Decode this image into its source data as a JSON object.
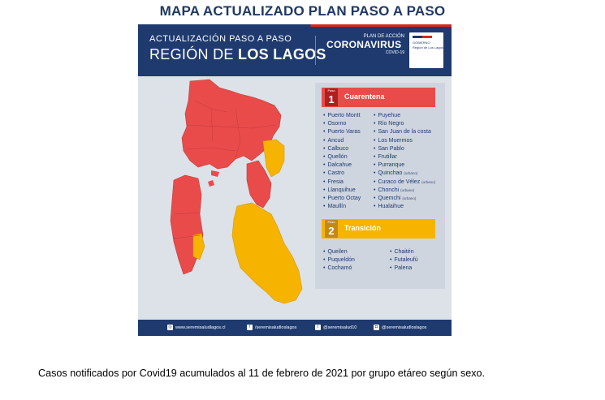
{
  "document_title": "MAPA ACTUALIZADO PLAN PASO A PASO",
  "header": {
    "line1": "ACTUALIZACIÓN PASO A PASO",
    "line2_prefix": "REGIÓN DE",
    "line2_bold": "LOS LAGOS",
    "plan_label": "PLAN DE ACCIÓN",
    "plan_brand": "CORONAVIRUS",
    "plan_sub": "COVID-19",
    "gov_line1": "GOBIERNO",
    "gov_line2": "Región de Los Lagos"
  },
  "phases": [
    {
      "label": "Paso",
      "number": "1",
      "name": "Cuarentena",
      "color": "#e94b4b",
      "communes_left": [
        {
          "name": "Puerto Montt",
          "suffix": ""
        },
        {
          "name": "Osorno",
          "suffix": ""
        },
        {
          "name": "Puerto Varas",
          "suffix": ""
        },
        {
          "name": "Ancud",
          "suffix": ""
        },
        {
          "name": "Calbuco",
          "suffix": ""
        },
        {
          "name": "Quellón",
          "suffix": ""
        },
        {
          "name": "Dalcahue",
          "suffix": ""
        },
        {
          "name": "Castro",
          "suffix": ""
        },
        {
          "name": "Fresia",
          "suffix": ""
        },
        {
          "name": "Llanquihue",
          "suffix": ""
        },
        {
          "name": "Puerto Octay",
          "suffix": ""
        },
        {
          "name": "Maullín",
          "suffix": ""
        }
      ],
      "communes_right": [
        {
          "name": "Puyehue",
          "suffix": ""
        },
        {
          "name": "Río Negro",
          "suffix": ""
        },
        {
          "name": "San Juan de la costa",
          "suffix": ""
        },
        {
          "name": "Los Muermos",
          "suffix": ""
        },
        {
          "name": "San Pablo",
          "suffix": ""
        },
        {
          "name": "Frutillar",
          "suffix": ""
        },
        {
          "name": "Purranque",
          "suffix": ""
        },
        {
          "name": "Quinchao",
          "suffix": "(urbano)"
        },
        {
          "name": "Curaco de Vélez",
          "suffix": "(urbano)"
        },
        {
          "name": "Chonchi",
          "suffix": "(urbano)"
        },
        {
          "name": "Quemchi",
          "suffix": "(urbano)"
        },
        {
          "name": "Hualaihue",
          "suffix": ""
        }
      ]
    },
    {
      "label": "Paso",
      "number": "2",
      "name": "Transición",
      "color": "#f6b400",
      "communes_left": [
        {
          "name": "Queilen",
          "suffix": ""
        },
        {
          "name": "Puqueldón",
          "suffix": ""
        },
        {
          "name": "Cochamó",
          "suffix": ""
        }
      ],
      "communes_right": [
        {
          "name": "Chaitén",
          "suffix": ""
        },
        {
          "name": "Futaleufú",
          "suffix": ""
        },
        {
          "name": "Palena",
          "suffix": ""
        }
      ]
    }
  ],
  "footer": [
    {
      "icon": "globe-icon",
      "text": "www.seremisaludlagos.cl"
    },
    {
      "icon": "facebook-icon",
      "text": "/seremisaludloslagos"
    },
    {
      "icon": "twitter-icon",
      "text": "@seremisalud10"
    },
    {
      "icon": "instagram-icon",
      "text": "@seremisaludloslagos"
    }
  ],
  "caption": "Casos notificados por Covid19 acumulados al 11 de febrero de 2021 por grupo etáreo según sexo.",
  "colors": {
    "quarantine": "#e94b4b",
    "transition": "#f6b400",
    "navy": "#1e3a6e"
  }
}
